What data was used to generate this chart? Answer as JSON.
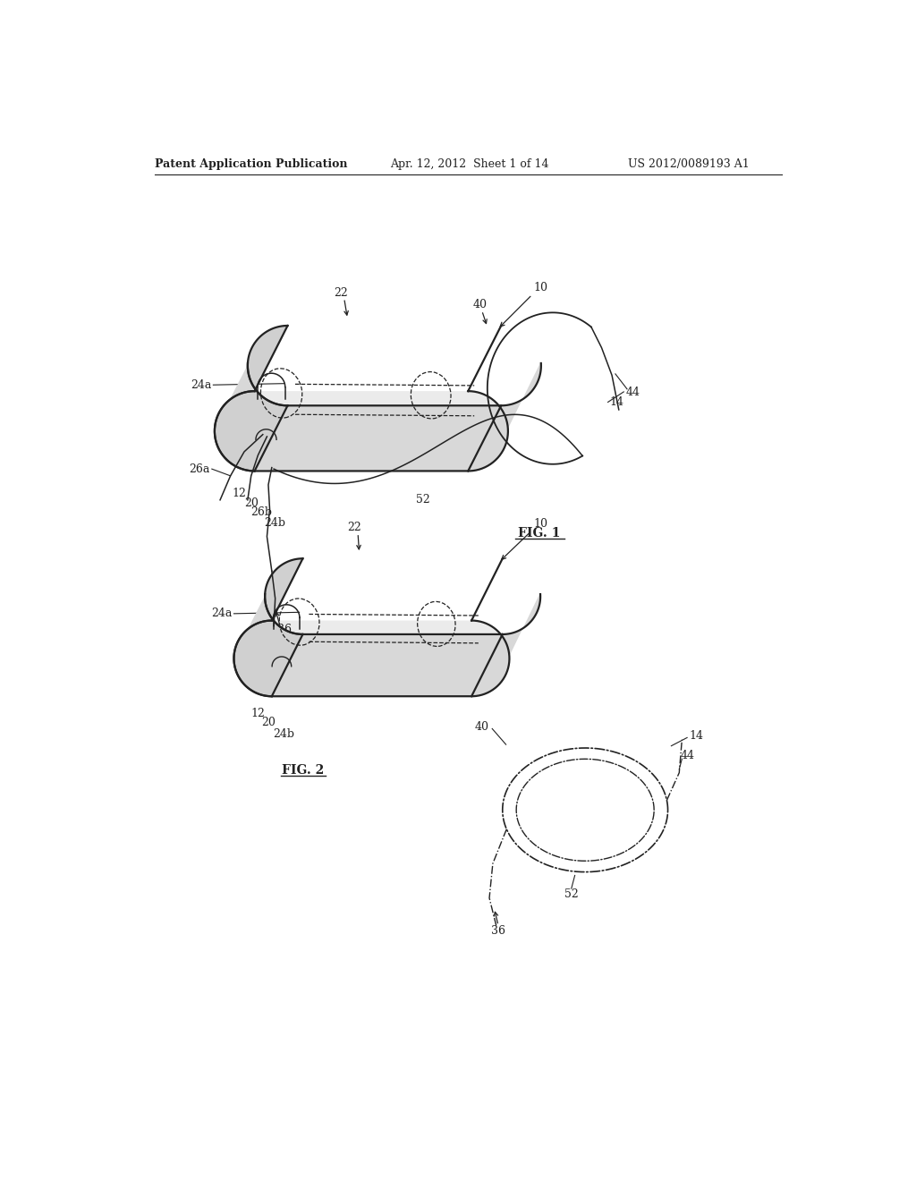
{
  "background_color": "#ffffff",
  "header_left": "Patent Application Publication",
  "header_center": "Apr. 12, 2012  Sheet 1 of 14",
  "header_right": "US 2012/0089193 A1",
  "line_color": "#222222",
  "text_color": "#222222",
  "fig1_label": "FIG. 1",
  "fig2_label": "FIG. 2"
}
